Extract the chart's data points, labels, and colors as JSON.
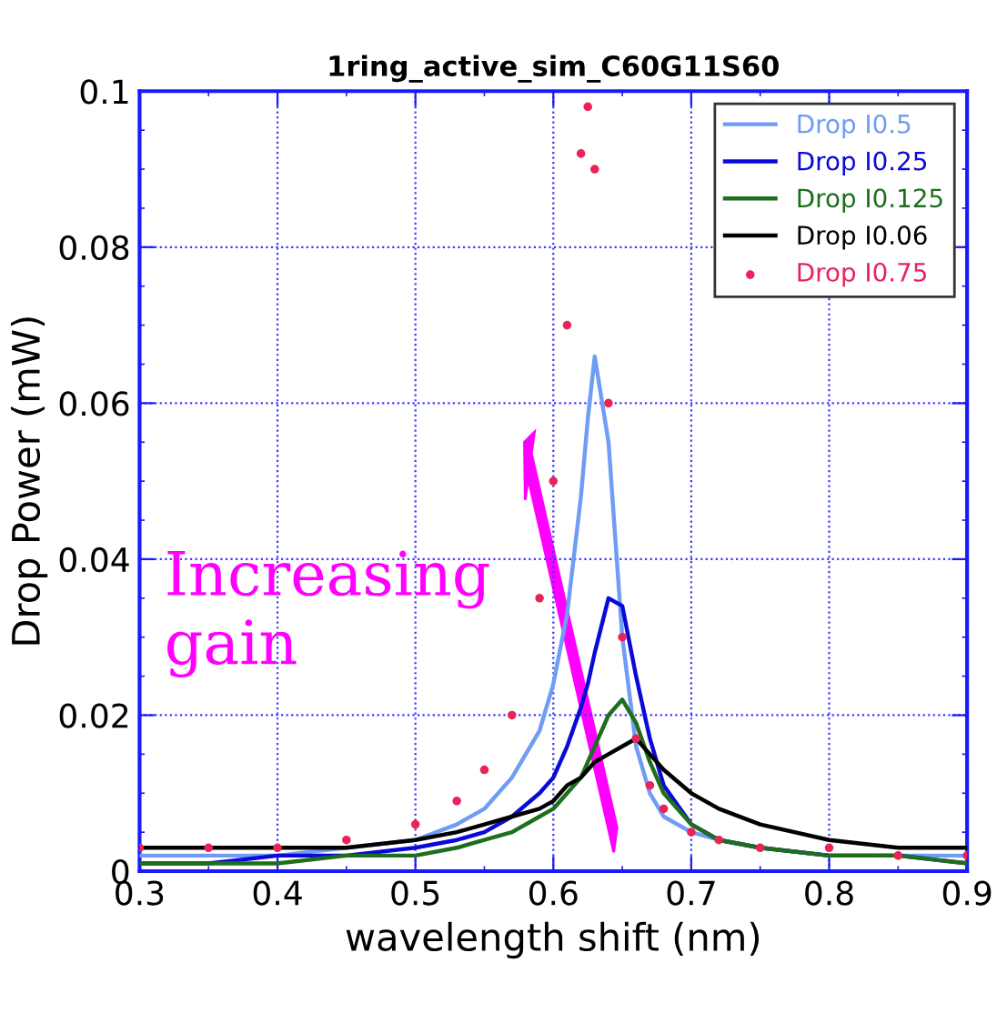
{
  "chart_data": {
    "type": "line",
    "title": "1ring_active_sim_C60G11S60",
    "xlabel": "wavelength shift (nm)",
    "ylabel": "Drop Power (mW)",
    "x": [
      0.3,
      0.35,
      0.4,
      0.45,
      0.5,
      0.53,
      0.55,
      0.57,
      0.59,
      0.6,
      0.61,
      0.62,
      0.625,
      0.63,
      0.64,
      0.65,
      0.66,
      0.67,
      0.68,
      0.7,
      0.72,
      0.75,
      0.8,
      0.85,
      0.9
    ],
    "series": [
      {
        "name": "Drop I0.5",
        "color": "#6f9cf5",
        "values": [
          0.002,
          0.002,
          0.002,
          0.003,
          0.004,
          0.006,
          0.008,
          0.012,
          0.018,
          0.024,
          0.033,
          0.048,
          0.058,
          0.066,
          0.055,
          0.03,
          0.016,
          0.01,
          0.007,
          0.005,
          0.004,
          0.003,
          0.002,
          0.002,
          0.002
        ]
      },
      {
        "name": "Drop I0.25",
        "color": "#0a0ad8",
        "values": [
          0.001,
          0.001,
          0.002,
          0.002,
          0.003,
          0.004,
          0.005,
          0.007,
          0.01,
          0.012,
          0.016,
          0.021,
          0.024,
          0.028,
          0.035,
          0.034,
          0.025,
          0.017,
          0.011,
          0.006,
          0.004,
          0.003,
          0.002,
          0.002,
          0.001
        ]
      },
      {
        "name": "Drop I0.125",
        "color": "#1e6e1e",
        "values": [
          0.001,
          0.001,
          0.001,
          0.002,
          0.002,
          0.003,
          0.004,
          0.005,
          0.007,
          0.008,
          0.01,
          0.012,
          0.014,
          0.016,
          0.02,
          0.022,
          0.019,
          0.014,
          0.01,
          0.006,
          0.004,
          0.003,
          0.002,
          0.002,
          0.001
        ]
      },
      {
        "name": "Drop I0.06",
        "color": "#000000",
        "values": [
          0.003,
          0.003,
          0.003,
          0.003,
          0.004,
          0.005,
          0.006,
          0.007,
          0.008,
          0.009,
          0.011,
          0.012,
          0.013,
          0.014,
          0.015,
          0.016,
          0.017,
          0.015,
          0.013,
          0.01,
          0.008,
          0.006,
          0.004,
          0.003,
          0.003
        ]
      },
      {
        "name": "Drop I0.75",
        "color": "#e8245a",
        "type": "scatter",
        "values": [
          0.003,
          0.003,
          0.003,
          0.004,
          0.006,
          0.009,
          0.013,
          0.02,
          0.035,
          0.05,
          0.07,
          0.092,
          0.098,
          0.09,
          0.06,
          0.03,
          0.017,
          0.011,
          0.008,
          0.005,
          0.004,
          0.003,
          0.003,
          0.002,
          0.002
        ]
      }
    ],
    "xlim": [
      0.3,
      0.9
    ],
    "xticks": [
      0.3,
      0.4,
      0.5,
      0.6,
      0.7,
      0.8,
      0.9
    ],
    "ylim": [
      0,
      0.1
    ],
    "yticks": [
      0,
      0.02,
      0.04,
      0.06,
      0.08,
      0.1
    ],
    "grid": true,
    "legend": "top right",
    "annotations": [
      "Increasing\ngain"
    ]
  }
}
